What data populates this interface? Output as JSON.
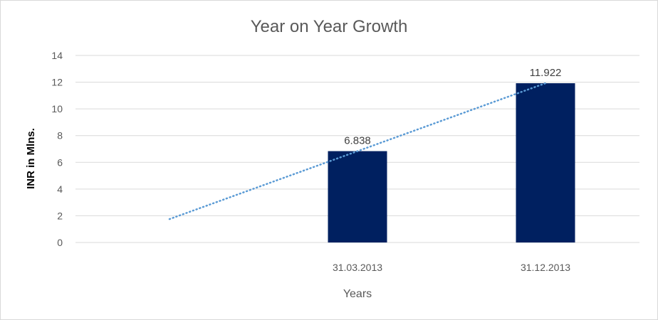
{
  "chart_data": {
    "type": "bar",
    "title": "Year on Year Growth",
    "xlabel": "Years",
    "ylabel": "INR in Mlns.",
    "ylim": [
      0,
      14
    ],
    "yticks": [
      0,
      2,
      4,
      6,
      8,
      10,
      12,
      14
    ],
    "ytick_labels": [
      "0",
      "2",
      "4",
      "6",
      "8",
      "10",
      "12",
      "14"
    ],
    "categories": [
      "",
      "31.03.2013",
      "31.12.2013"
    ],
    "values": [
      null,
      6.838,
      11.922
    ],
    "data_labels": [
      "",
      "6.838",
      "11.922"
    ],
    "trendline": {
      "type": "linear",
      "style": "dotted",
      "start_value": 1.75,
      "end_value": 11.922
    },
    "grid": true,
    "legend": "none",
    "colors": {
      "bar": "#002060",
      "trendline": "#5b9bd5",
      "grid": "#d9d9d9",
      "text": "#595959"
    }
  }
}
